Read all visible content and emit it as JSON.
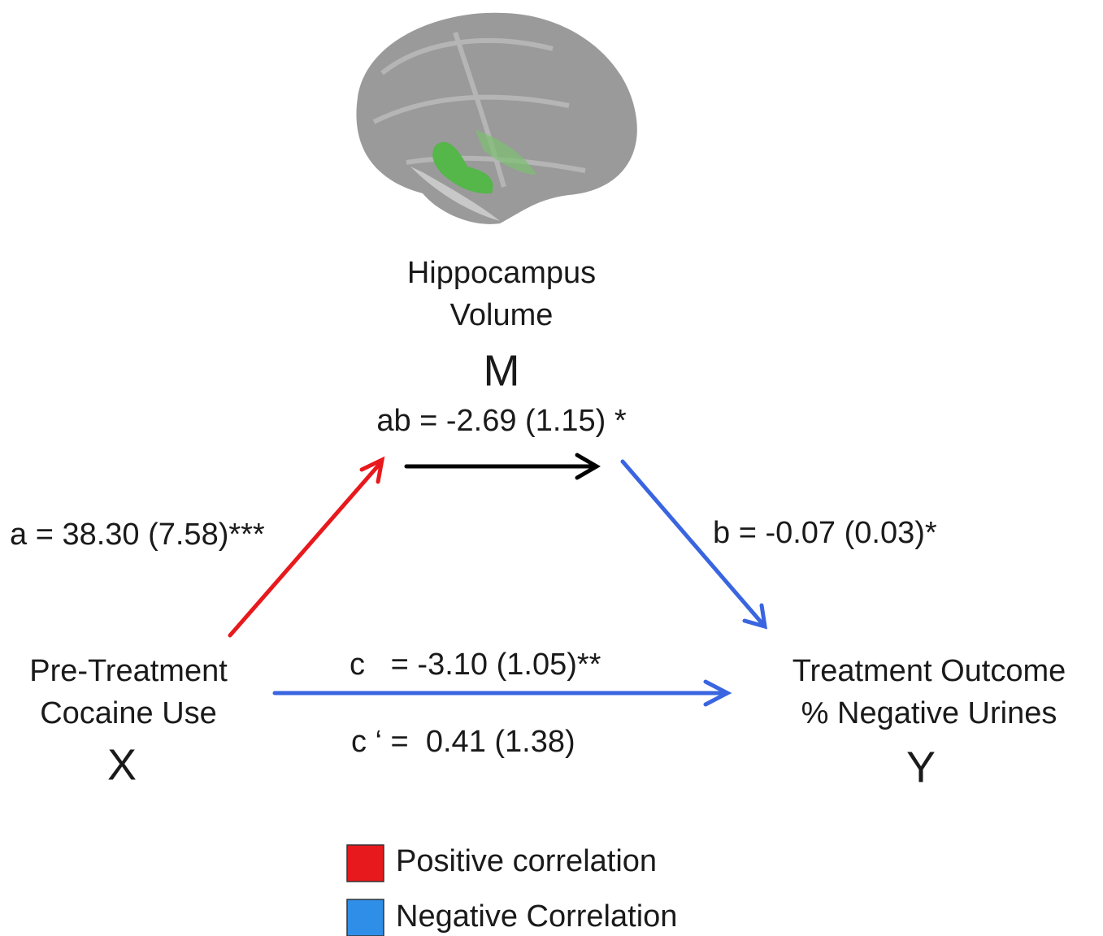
{
  "nodes": [
    {
      "label": [
        "Hippocampus",
        "Volume"
      ],
      "symbol": "M"
    },
    {
      "label": [
        "Pre-Treatment",
        "Cocaine Use"
      ],
      "symbol": "X"
    },
    {
      "label": [
        "Treatment Outcome",
        "% Negative Urines"
      ],
      "symbol": "Y"
    }
  ],
  "edges": {
    "ab": "ab = -2.69 (1.15) *",
    "a": "a = 38.30 (7.58)***",
    "b": "b = -0.07 (0.03)*",
    "c": "c   = -3.10 (1.05)**",
    "c_prime": "c ‘ =  0.41 (1.38)"
  },
  "legend": [
    "Positive correlation",
    "Negative Correlation"
  ]
}
